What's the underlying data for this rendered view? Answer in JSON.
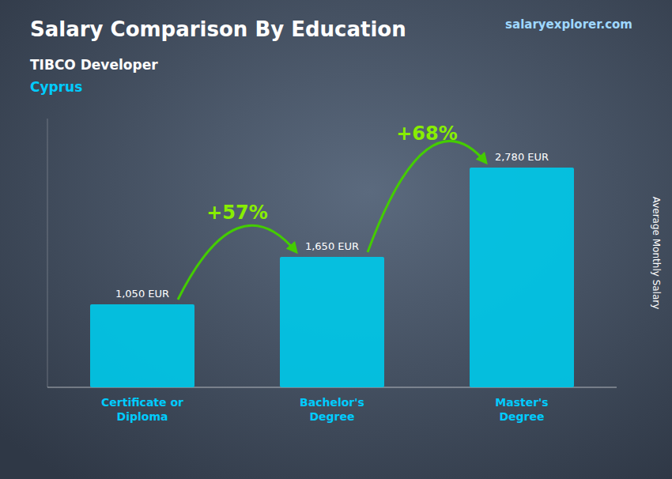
{
  "chart_data": {
    "type": "bar",
    "title": "Salary Comparison By Education",
    "subtitle": [
      "TIBCO Developer",
      "Cyprus"
    ],
    "source": "salaryexplorer.com",
    "ylabel": "Average Monthly Salary",
    "categories": [
      "Certificate or\nDiploma",
      "Bachelor's\nDegree",
      "Master's\nDegree"
    ],
    "values": [
      1050,
      1650,
      2780
    ],
    "value_labels": [
      "1,050 EUR",
      "1,650 EUR",
      "2,780 EUR"
    ],
    "data_labels": true,
    "annotations": [
      "+57%",
      "+68%"
    ],
    "color": "#00c8e8",
    "ylim": [
      0,
      3400
    ],
    "tick_labels": false,
    "grid": false
  }
}
